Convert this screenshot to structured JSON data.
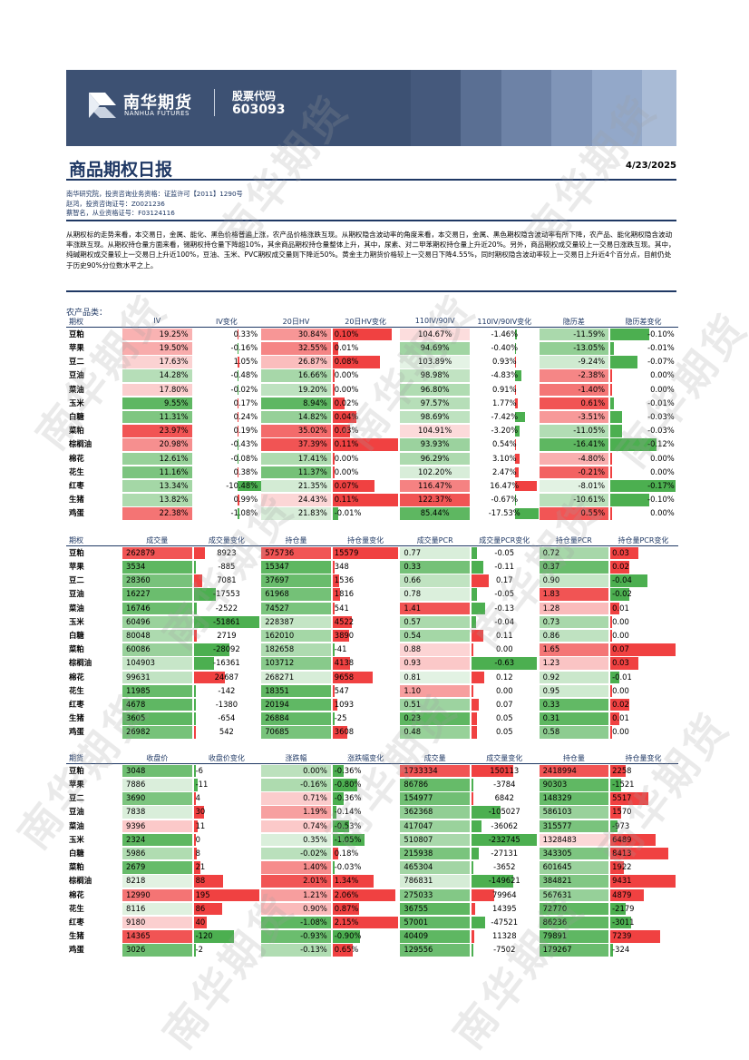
{
  "header": {
    "logo_cn": "南华期货",
    "logo_en": "NANHUA FUTURES",
    "code_label": "股票代码",
    "code_value": "603093"
  },
  "title": "商品期权日报",
  "date": "4/23/2025",
  "meta_lines": [
    "南华研究院，投资咨询业务资格：证监许可【2011】1290号",
    "赵鸿，投资咨询证号：Z0021236",
    "蔡智名，从业资格证号：F03124116"
  ],
  "summary": "从期权标的走势来看，本交易日，金属、能化、黑色价格普遍上涨，农产品价格涨跌互现。从期权隐含波动率的角度来看，本交易日，金属、黑色期权隐含波动率有所下降，农产品、能化期权隐含波动率涨跌互现。从期权持仓量方面来看，锡期权持仓量下降超10%，其余商品期权持仓量整体上升，其中，尿素、对二甲苯期权持仓量上升近20%。另外，商品期权成交量较上一交易日涨跌互现。其中，纯碱期权成交量较上一交易日上升近100%，豆油、玉米、PVC期权成交量则下降近50%。黄金主力期货价格较上一交易日下降4.55%，同时期权隐含波动率较上一交易日上升近4个百分点，目前仍处于历史90%分位数水平之上。",
  "section_title": "农产品类：",
  "colors": {
    "navy": "#1f3864",
    "green": "#4caf50",
    "red": "#f04141",
    "pink": "#f7b6b6",
    "lightgreen": "#c9e8c9"
  },
  "table1": {
    "headers": [
      "期权",
      "IV",
      "IV变化",
      "20日HV",
      "20日HV变化",
      "110IV/90IV",
      "110IV/90IV变化",
      "隐历差",
      "隐历差变化"
    ],
    "rows": [
      [
        "豆粕",
        "19.25%",
        "0.33%",
        "30.84%",
        "0.10%",
        "104.67%",
        "-1.46%",
        "-11.59%",
        "-0.10%"
      ],
      [
        "苹果",
        "19.50%",
        "-0.16%",
        "32.55%",
        "0.01%",
        "94.69%",
        "-0.40%",
        "-13.05%",
        "-0.01%"
      ],
      [
        "豆二",
        "17.63%",
        "1.05%",
        "26.87%",
        "0.08%",
        "103.89%",
        "0.93%",
        "-9.24%",
        "-0.07%"
      ],
      [
        "豆油",
        "14.28%",
        "-0.48%",
        "16.66%",
        "0.00%",
        "98.98%",
        "-4.83%",
        "-2.38%",
        "0.00%"
      ],
      [
        "菜油",
        "17.80%",
        "-0.02%",
        "19.20%",
        "0.00%",
        "96.80%",
        "0.91%",
        "-1.40%",
        "0.00%"
      ],
      [
        "玉米",
        "9.55%",
        "0.17%",
        "8.94%",
        "0.02%",
        "97.57%",
        "1.77%",
        "0.61%",
        "-0.01%"
      ],
      [
        "白糖",
        "11.31%",
        "0.24%",
        "14.82%",
        "0.04%",
        "98.69%",
        "-7.42%",
        "-3.51%",
        "-0.03%"
      ],
      [
        "菜粕",
        "23.97%",
        "0.19%",
        "35.02%",
        "0.03%",
        "104.91%",
        "-3.20%",
        "-11.05%",
        "-0.03%"
      ],
      [
        "棕榈油",
        "20.98%",
        "-0.43%",
        "37.39%",
        "0.11%",
        "93.93%",
        "0.54%",
        "-16.41%",
        "-0.12%"
      ],
      [
        "棉花",
        "12.61%",
        "-0.08%",
        "17.41%",
        "0.00%",
        "96.29%",
        "3.10%",
        "-4.80%",
        "0.00%"
      ],
      [
        "花生",
        "11.16%",
        "0.38%",
        "11.37%",
        "0.00%",
        "102.20%",
        "2.47%",
        "-0.21%",
        "0.00%"
      ],
      [
        "红枣",
        "13.34%",
        "-10.48%",
        "21.35%",
        "0.07%",
        "116.47%",
        "16.47%",
        "-8.01%",
        "-0.17%"
      ],
      [
        "生猪",
        "13.82%",
        "0.99%",
        "24.43%",
        "0.11%",
        "122.37%",
        "-0.67%",
        "-10.61%",
        "-0.10%"
      ],
      [
        "鸡蛋",
        "22.38%",
        "-1.08%",
        "21.83%",
        "-0.01%",
        "85.44%",
        "-17.53%",
        "0.55%",
        "0.00%"
      ]
    ]
  },
  "table2": {
    "headers": [
      "期权",
      "成交量",
      "成交量变化",
      "持仓量",
      "持仓量变化",
      "成交量PCR",
      "成交量PCR变化",
      "持仓量PCR",
      "持仓量PCR变化"
    ],
    "rows": [
      [
        "豆粕",
        "262879",
        "8923",
        "575736",
        "15579",
        "0.77",
        "-0.05",
        "0.72",
        "0.03"
      ],
      [
        "苹果",
        "3534",
        "-885",
        "15347",
        "348",
        "0.33",
        "-0.11",
        "0.37",
        "0.02"
      ],
      [
        "豆二",
        "28360",
        "7081",
        "37697",
        "1536",
        "0.66",
        "0.17",
        "0.90",
        "-0.04"
      ],
      [
        "豆油",
        "16227",
        "-17553",
        "61968",
        "1816",
        "0.78",
        "-0.05",
        "1.83",
        "-0.02"
      ],
      [
        "菜油",
        "16746",
        "-2522",
        "74527",
        "541",
        "1.41",
        "-0.13",
        "1.28",
        "0.01"
      ],
      [
        "玉米",
        "60496",
        "-51861",
        "228387",
        "4522",
        "0.57",
        "-0.04",
        "0.73",
        "0.00"
      ],
      [
        "白糖",
        "80048",
        "2719",
        "162010",
        "3890",
        "0.54",
        "0.11",
        "0.86",
        "0.00"
      ],
      [
        "菜粕",
        "60086",
        "-28092",
        "182658",
        "-41",
        "0.88",
        "0.00",
        "1.65",
        "0.07"
      ],
      [
        "棕榈油",
        "104903",
        "-16361",
        "103712",
        "4138",
        "0.93",
        "-0.63",
        "1.23",
        "0.03"
      ],
      [
        "棉花",
        "99631",
        "24687",
        "268271",
        "9658",
        "0.81",
        "0.12",
        "0.92",
        "-0.01"
      ],
      [
        "花生",
        "11985",
        "-142",
        "18351",
        "547",
        "1.10",
        "0.00",
        "0.95",
        "0.00"
      ],
      [
        "红枣",
        "4678",
        "-1380",
        "20194",
        "1093",
        "0.51",
        "0.07",
        "0.33",
        "0.02"
      ],
      [
        "生猪",
        "3605",
        "-654",
        "26884",
        "-25",
        "0.23",
        "0.05",
        "0.31",
        "0.01"
      ],
      [
        "鸡蛋",
        "26982",
        "542",
        "70685",
        "3608",
        "0.48",
        "0.05",
        "0.58",
        "0.00"
      ]
    ]
  },
  "table3": {
    "headers": [
      "期货",
      "收盘价",
      "收盘价变化",
      "涨跌幅",
      "涨跌幅变化",
      "成交量",
      "成交量变化",
      "持仓量",
      "持仓量变化"
    ],
    "rows": [
      [
        "豆粕",
        "3048",
        "-6",
        "0.00%",
        "-0.36%",
        "1733334",
        "150113",
        "2418994",
        "2258"
      ],
      [
        "苹果",
        "7886",
        "-11",
        "-0.16%",
        "-0.80%",
        "86786",
        "-3784",
        "90303",
        "-1521"
      ],
      [
        "豆二",
        "3690",
        "4",
        "0.71%",
        "-0.36%",
        "154977",
        "6842",
        "148329",
        "5517"
      ],
      [
        "豆油",
        "7838",
        "30",
        "1.19%",
        "-0.14%",
        "362368",
        "-105027",
        "586103",
        "1570"
      ],
      [
        "菜油",
        "9396",
        "11",
        "0.74%",
        "-0.53%",
        "417047",
        "-36062",
        "315577",
        "-973"
      ],
      [
        "玉米",
        "2324",
        "0",
        "0.35%",
        "-1.05%",
        "510807",
        "-232745",
        "1328483",
        "6489"
      ],
      [
        "白糖",
        "5986",
        "8",
        "-0.02%",
        "0.18%",
        "215938",
        "-27131",
        "343305",
        "8413"
      ],
      [
        "菜粕",
        "2679",
        "21",
        "1.40%",
        "-0.03%",
        "465304",
        "-3652",
        "601645",
        "1922"
      ],
      [
        "棕榈油",
        "8218",
        "88",
        "2.01%",
        "1.34%",
        "786831",
        "-149621",
        "384821",
        "9431"
      ],
      [
        "棉花",
        "12990",
        "195",
        "1.21%",
        "2.06%",
        "275033",
        "79964",
        "567631",
        "4879"
      ],
      [
        "花生",
        "8116",
        "86",
        "0.90%",
        "0.87%",
        "36755",
        "14395",
        "72770",
        "-2179"
      ],
      [
        "红枣",
        "9180",
        "40",
        "-1.08%",
        "2.15%",
        "57001",
        "-47521",
        "86236",
        "-3011"
      ],
      [
        "生猪",
        "14365",
        "-120",
        "-0.93%",
        "-0.90%",
        "40409",
        "11328",
        "79891",
        "7239"
      ],
      [
        "鸡蛋",
        "3026",
        "-2",
        "-0.13%",
        "0.65%",
        "129556",
        "-7502",
        "179267",
        "-324"
      ]
    ]
  },
  "watermark": "南华期货"
}
